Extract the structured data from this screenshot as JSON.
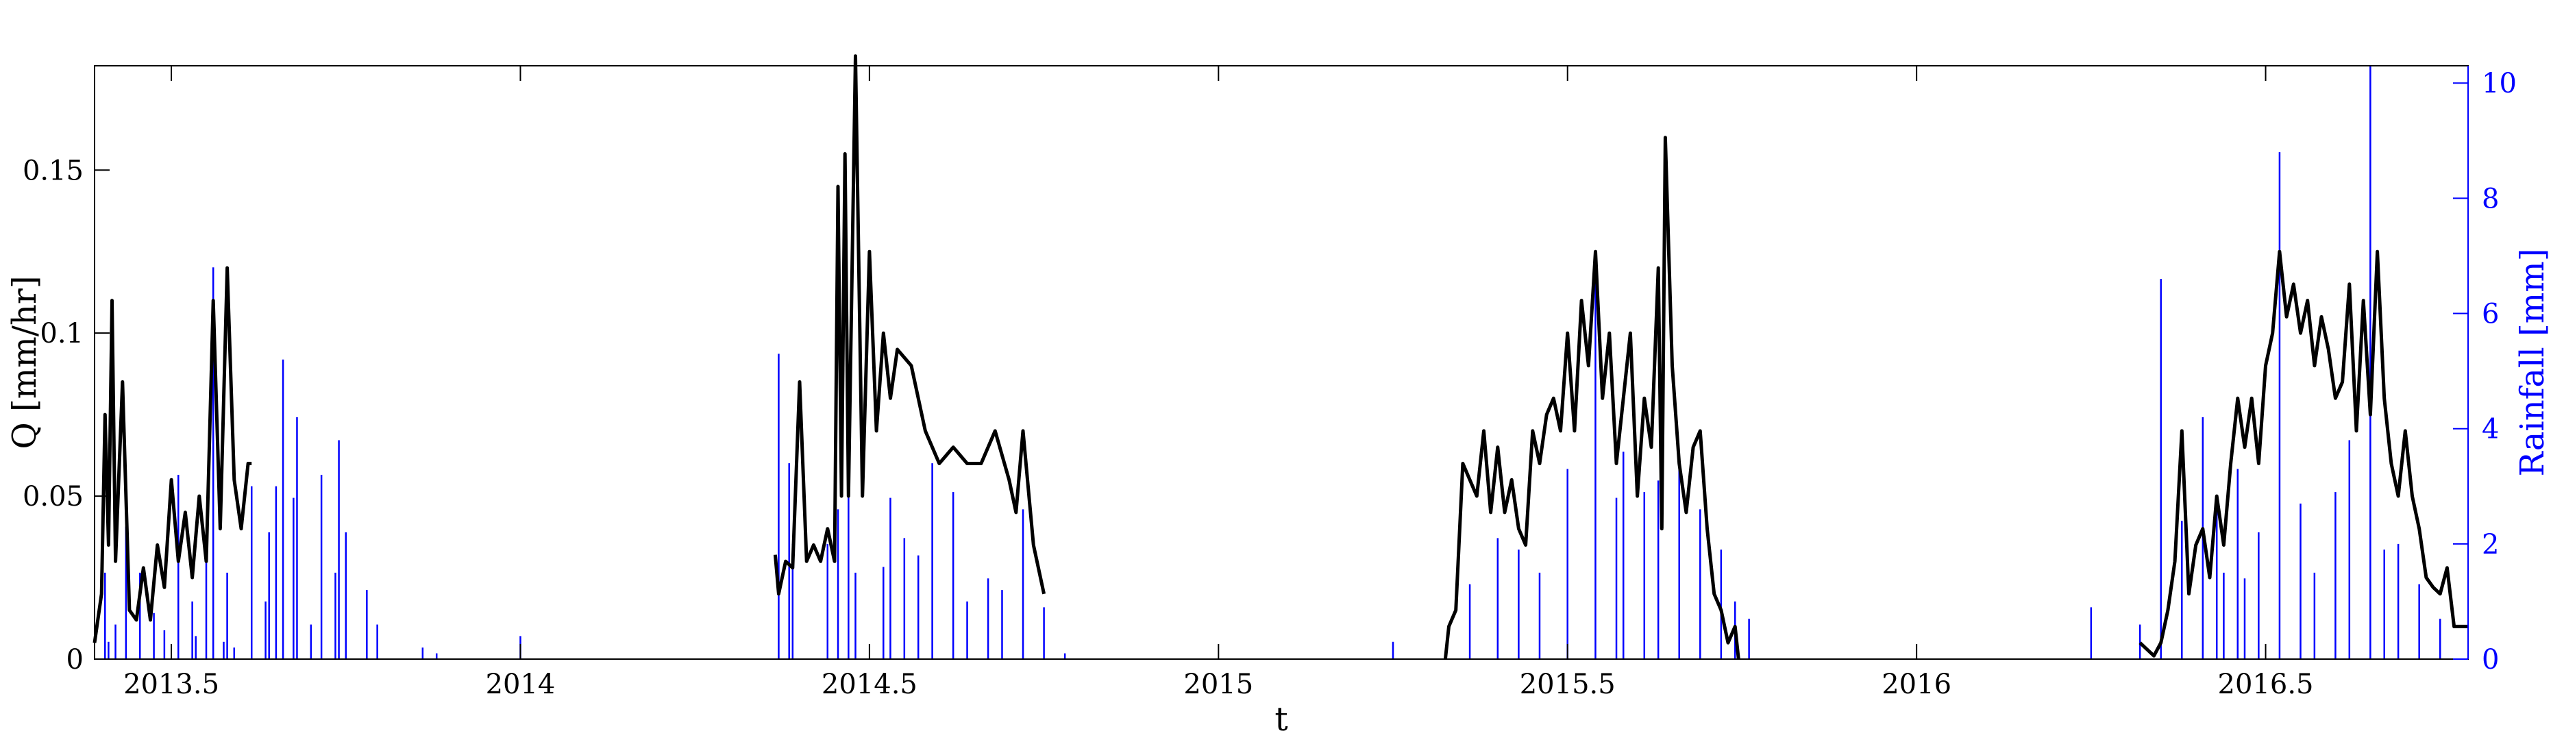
{
  "chart_data": {
    "type": "line",
    "xlabel": "t",
    "ylabel_left": "Q [mm/hr]",
    "ylabel_right": "Rainfall [mm]",
    "xlim": [
      2013.39,
      2016.79
    ],
    "ylim_left": [
      0,
      0.182
    ],
    "ylim_right": [
      0,
      10.3
    ],
    "x_ticks": [
      2013.5,
      2014,
      2014.5,
      2015,
      2015.5,
      2016,
      2016.5
    ],
    "x_tick_labels": [
      "2013.5",
      "2014",
      "2014.5",
      "2015",
      "2015.5",
      "2016",
      "2016.5"
    ],
    "y_left_ticks": [
      0,
      0.05,
      0.1,
      0.15
    ],
    "y_left_tick_labels": [
      "0",
      "0.05",
      "0.1",
      "0.15"
    ],
    "y_right_ticks": [
      0,
      2,
      4,
      6,
      8,
      10
    ],
    "y_right_tick_labels": [
      "0",
      "2",
      "4",
      "6",
      "8",
      "10"
    ],
    "grid": false,
    "colors": {
      "discharge": "#000000",
      "rainfall": "#0000ff",
      "axis_right": "#0000ff",
      "axis_left": "#000000"
    },
    "series": [
      {
        "axis": "left",
        "style": "line",
        "segments": [
          {
            "x": [
              2013.39,
              2013.4,
              2013.405,
              2013.41,
              2013.415,
              2013.42,
              2013.43,
              2013.44,
              2013.45,
              2013.46,
              2013.47,
              2013.48,
              2013.49,
              2013.5,
              2013.51,
              2013.52,
              2013.53,
              2013.54,
              2013.55,
              2013.56,
              2013.57,
              2013.58,
              2013.59,
              2013.6,
              2013.61,
              2013.615
            ],
            "y": [
              0.005,
              0.02,
              0.075,
              0.035,
              0.11,
              0.03,
              0.085,
              0.015,
              0.012,
              0.028,
              0.012,
              0.035,
              0.022,
              0.055,
              0.03,
              0.045,
              0.025,
              0.05,
              0.03,
              0.11,
              0.04,
              0.12,
              0.055,
              0.04,
              0.06,
              0.06
            ]
          },
          {
            "x": [
              2014.365,
              2014.37,
              2014.38,
              2014.39,
              2014.4,
              2014.41,
              2014.42,
              2014.43,
              2014.44,
              2014.45,
              2014.455,
              2014.46,
              2014.465,
              2014.47,
              2014.48,
              2014.49,
              2014.5,
              2014.51,
              2014.52,
              2014.53,
              2014.54,
              2014.56,
              2014.58,
              2014.6,
              2014.62,
              2014.64,
              2014.66,
              2014.68,
              2014.7,
              2014.71,
              2014.72,
              2014.735,
              2014.75
            ],
            "y": [
              0.032,
              0.02,
              0.03,
              0.028,
              0.085,
              0.03,
              0.035,
              0.03,
              0.04,
              0.03,
              0.145,
              0.05,
              0.155,
              0.05,
              0.185,
              0.05,
              0.125,
              0.07,
              0.1,
              0.08,
              0.095,
              0.09,
              0.07,
              0.06,
              0.065,
              0.06,
              0.06,
              0.07,
              0.055,
              0.045,
              0.07,
              0.035,
              0.02
            ]
          },
          {
            "x": [
              2015.325,
              2015.33,
              2015.34,
              2015.35,
              2015.36,
              2015.37,
              2015.38,
              2015.39,
              2015.4,
              2015.41,
              2015.42,
              2015.43,
              2015.44,
              2015.45,
              2015.46,
              2015.47,
              2015.48,
              2015.49,
              2015.5,
              2015.51,
              2015.52,
              2015.53,
              2015.54,
              2015.55,
              2015.56,
              2015.57,
              2015.58,
              2015.59,
              2015.6,
              2015.61,
              2015.62,
              2015.63,
              2015.635,
              2015.64,
              2015.65,
              2015.66,
              2015.67,
              2015.68,
              2015.69,
              2015.7,
              2015.71,
              2015.72,
              2015.73,
              2015.74,
              2015.745
            ],
            "y": [
              0,
              0.01,
              0.015,
              0.06,
              0.055,
              0.05,
              0.07,
              0.045,
              0.065,
              0.045,
              0.055,
              0.04,
              0.035,
              0.07,
              0.06,
              0.075,
              0.08,
              0.07,
              0.1,
              0.07,
              0.11,
              0.09,
              0.125,
              0.08,
              0.1,
              0.06,
              0.08,
              0.1,
              0.05,
              0.08,
              0.065,
              0.12,
              0.04,
              0.16,
              0.09,
              0.06,
              0.045,
              0.065,
              0.07,
              0.04,
              0.02,
              0.015,
              0.005,
              0.01,
              0
            ]
          },
          {
            "x": [
              2016.32,
              2016.33,
              2016.34,
              2016.35,
              2016.36,
              2016.37,
              2016.38,
              2016.39,
              2016.4,
              2016.41,
              2016.42,
              2016.43,
              2016.44,
              2016.45,
              2016.46,
              2016.47,
              2016.48,
              2016.49,
              2016.5,
              2016.51,
              2016.52,
              2016.53,
              2016.54,
              2016.55,
              2016.56,
              2016.57,
              2016.58,
              2016.59,
              2016.6,
              2016.61,
              2016.62,
              2016.63,
              2016.64,
              2016.65,
              2016.66,
              2016.67,
              2016.68,
              2016.69,
              2016.7,
              2016.71,
              2016.72,
              2016.73,
              2016.74,
              2016.75,
              2016.76,
              2016.77,
              2016.78,
              2016.79
            ],
            "y": [
              0.005,
              0.003,
              0.001,
              0.005,
              0.015,
              0.03,
              0.07,
              0.02,
              0.035,
              0.04,
              0.025,
              0.05,
              0.035,
              0.06,
              0.08,
              0.065,
              0.08,
              0.06,
              0.09,
              0.1,
              0.125,
              0.105,
              0.115,
              0.1,
              0.11,
              0.09,
              0.105,
              0.095,
              0.08,
              0.085,
              0.115,
              0.07,
              0.11,
              0.075,
              0.125,
              0.08,
              0.06,
              0.05,
              0.07,
              0.05,
              0.04,
              0.025,
              0.022,
              0.02,
              0.028,
              0.01,
              0.01,
              0.01
            ]
          }
        ]
      },
      {
        "axis": "right",
        "style": "stem",
        "x": [
          2013.405,
          2013.41,
          2013.42,
          2013.435,
          2013.455,
          2013.475,
          2013.49,
          2013.51,
          2013.53,
          2013.535,
          2013.55,
          2013.56,
          2013.575,
          2013.58,
          2013.59,
          2013.615,
          2013.635,
          2013.64,
          2013.65,
          2013.66,
          2013.675,
          2013.68,
          2013.7,
          2013.715,
          2013.735,
          2013.74,
          2013.75,
          2013.78,
          2013.795,
          2013.86,
          2013.88,
          2014.0,
          2014.37,
          2014.385,
          2014.39,
          2014.44,
          2014.455,
          2014.47,
          2014.48,
          2014.52,
          2014.53,
          2014.55,
          2014.57,
          2014.59,
          2014.62,
          2014.64,
          2014.67,
          2014.69,
          2014.72,
          2014.75,
          2014.78,
          2015.25,
          2015.36,
          2015.4,
          2015.43,
          2015.46,
          2015.5,
          2015.54,
          2015.57,
          2015.58,
          2015.61,
          2015.63,
          2015.66,
          2015.69,
          2015.72,
          2015.74,
          2015.76,
          2016.25,
          2016.32,
          2016.35,
          2016.38,
          2016.41,
          2016.43,
          2016.44,
          2016.46,
          2016.47,
          2016.49,
          2016.52,
          2016.55,
          2016.57,
          2016.6,
          2016.62,
          2016.65,
          2016.67,
          2016.69,
          2016.72,
          2016.75
        ],
        "y": [
          1.5,
          0.3,
          0.6,
          2.3,
          1.5,
          0.8,
          0.5,
          3.2,
          1.0,
          0.4,
          1.8,
          6.8,
          0.3,
          1.5,
          0.2,
          3.0,
          1.0,
          2.2,
          3.0,
          5.2,
          2.8,
          4.2,
          0.6,
          3.2,
          1.5,
          3.8,
          2.2,
          1.2,
          0.6,
          0.2,
          0.1,
          0.4,
          5.3,
          3.4,
          2.0,
          2.0,
          2.6,
          3.2,
          1.5,
          1.6,
          2.8,
          2.1,
          1.8,
          3.4,
          2.9,
          1.0,
          1.4,
          1.2,
          2.6,
          0.9,
          0.1,
          0.3,
          1.3,
          2.1,
          1.9,
          1.5,
          3.3,
          7.0,
          2.8,
          3.6,
          2.9,
          3.1,
          3.5,
          2.6,
          1.9,
          1.0,
          0.7,
          0.9,
          0.6,
          6.6,
          2.4,
          4.2,
          2.8,
          1.5,
          3.3,
          1.4,
          2.2,
          8.8,
          2.7,
          1.5,
          2.9,
          3.8,
          10.3,
          1.9,
          2.0,
          1.3,
          0.7
        ]
      }
    ]
  }
}
